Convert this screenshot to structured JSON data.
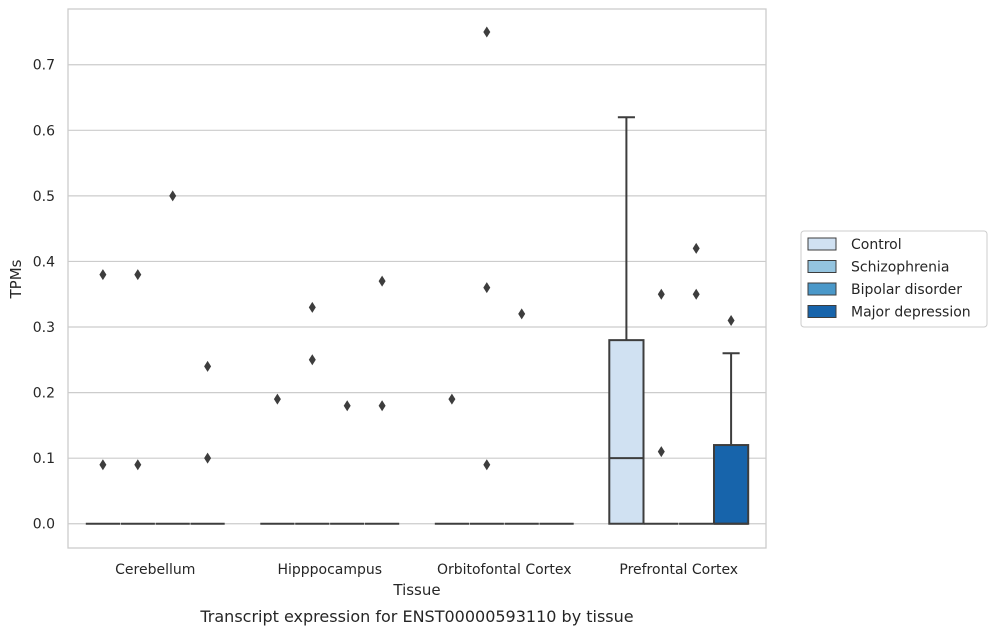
{
  "chart_data": {
    "type": "box",
    "xlabel": "Tissue",
    "ylabel": "TPMs",
    "caption": "Transcript expression for ENST00000593110 by tissue",
    "ylim": [
      -0.037,
      0.785
    ],
    "yticks": [
      "0.0",
      "0.1",
      "0.2",
      "0.3",
      "0.4",
      "0.5",
      "0.6",
      "0.7"
    ],
    "grid": true,
    "legend_position": "right",
    "categories": [
      "Cerebellum",
      "Hipppocampus",
      "Orbitofontal Cortex",
      "Prefrontal Cortex"
    ],
    "series": [
      {
        "name": "Control",
        "color": "#d0e1f2",
        "boxes": [
          {
            "category": "Cerebellum",
            "q1": 0,
            "median": 0,
            "q3": 0,
            "whislo": 0,
            "whishi": 0,
            "fliers": [
              0.09,
              0.38
            ]
          },
          {
            "category": "Hipppocampus",
            "q1": 0,
            "median": 0,
            "q3": 0,
            "whislo": 0,
            "whishi": 0,
            "fliers": [
              0.19
            ]
          },
          {
            "category": "Orbitofontal Cortex",
            "q1": 0,
            "median": 0,
            "q3": 0,
            "whislo": 0,
            "whishi": 0,
            "fliers": [
              0.19
            ]
          },
          {
            "category": "Prefrontal Cortex",
            "q1": 0,
            "median": 0.1,
            "q3": 0.28,
            "whislo": 0,
            "whishi": 0.62,
            "fliers": []
          }
        ]
      },
      {
        "name": "Schizophrenia",
        "color": "#94c4df",
        "boxes": [
          {
            "category": "Cerebellum",
            "q1": 0,
            "median": 0,
            "q3": 0,
            "whislo": 0,
            "whishi": 0,
            "fliers": [
              0.09,
              0.38
            ]
          },
          {
            "category": "Hipppocampus",
            "q1": 0,
            "median": 0,
            "q3": 0,
            "whislo": 0,
            "whishi": 0,
            "fliers": [
              0.25,
              0.33
            ]
          },
          {
            "category": "Orbitofontal Cortex",
            "q1": 0,
            "median": 0,
            "q3": 0,
            "whislo": 0,
            "whishi": 0,
            "fliers": [
              0.09,
              0.36,
              0.75
            ]
          },
          {
            "category": "Prefrontal Cortex",
            "q1": 0,
            "median": 0,
            "q3": 0,
            "whislo": 0,
            "whishi": 0,
            "fliers": [
              0.11,
              0.35
            ]
          }
        ]
      },
      {
        "name": "Bipolar disorder",
        "color": "#4a98c9",
        "boxes": [
          {
            "category": "Cerebellum",
            "q1": 0,
            "median": 0,
            "q3": 0,
            "whislo": 0,
            "whishi": 0,
            "fliers": [
              0.5
            ]
          },
          {
            "category": "Hipppocampus",
            "q1": 0,
            "median": 0,
            "q3": 0,
            "whislo": 0,
            "whishi": 0,
            "fliers": [
              0.18
            ]
          },
          {
            "category": "Orbitofontal Cortex",
            "q1": 0,
            "median": 0,
            "q3": 0,
            "whislo": 0,
            "whishi": 0,
            "fliers": [
              0.32
            ]
          },
          {
            "category": "Prefrontal Cortex",
            "q1": 0,
            "median": 0,
            "q3": 0,
            "whislo": 0,
            "whishi": 0,
            "fliers": [
              0.35,
              0.42
            ]
          }
        ]
      },
      {
        "name": "Major depression",
        "color": "#1764ab",
        "boxes": [
          {
            "category": "Cerebellum",
            "q1": 0,
            "median": 0,
            "q3": 0,
            "whislo": 0,
            "whishi": 0,
            "fliers": [
              0.1,
              0.24
            ]
          },
          {
            "category": "Hipppocampus",
            "q1": 0,
            "median": 0,
            "q3": 0,
            "whislo": 0,
            "whishi": 0,
            "fliers": [
              0.18,
              0.37
            ]
          },
          {
            "category": "Orbitofontal Cortex",
            "q1": 0,
            "median": 0,
            "q3": 0,
            "whislo": 0,
            "whishi": 0,
            "fliers": []
          },
          {
            "category": "Prefrontal Cortex",
            "q1": 0,
            "median": 0,
            "q3": 0.12,
            "whislo": 0,
            "whishi": 0.26,
            "fliers": [
              0.31
            ]
          }
        ]
      }
    ]
  }
}
